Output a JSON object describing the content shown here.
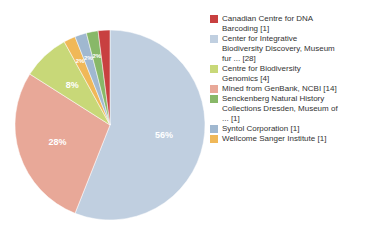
{
  "chart_data": {
    "type": "pie",
    "categories": [
      "Center for Integrative\nBiodiversity Discovery, Museum\nfur ... [28]",
      "Mined from GenBank, NCBI [14]",
      "Centre for Biodiversity\nGenomics [4]",
      "Wellcome Sanger Institute [1]",
      "Syntol Corporation [1]",
      "Senckenberg Natural History\nCollections Dresden, Museum of\n... [1]",
      "Canadian Centre for DNA\nBarcoding [1]"
    ],
    "values": [
      56,
      28,
      8,
      2,
      2,
      2,
      2
    ],
    "value_labels": [
      "56%",
      "28%",
      "8%",
      "2%",
      "2%",
      "2%",
      null
    ],
    "data_labels": true,
    "colors": [
      "#c0cfe0",
      "#e8a898",
      "#c8d878",
      "#f0b858",
      "#a0b8d0",
      "#88b868",
      "#c84040"
    ],
    "legend": "right"
  }
}
